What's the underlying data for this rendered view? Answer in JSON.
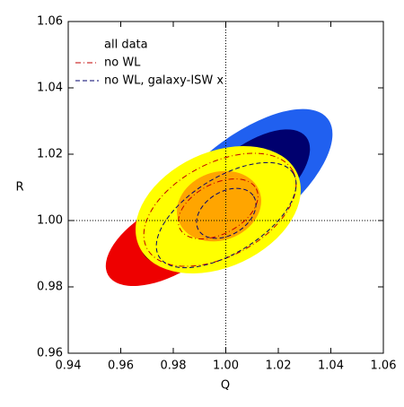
{
  "chart_data": {
    "type": "contour",
    "xlabel": "Q",
    "ylabel": "R",
    "xlim": [
      0.94,
      1.06
    ],
    "ylim": [
      0.96,
      1.06
    ],
    "xticks": [
      0.94,
      0.96,
      0.98,
      {
        "value": 1.0,
        "label": "1.00"
      },
      1.02,
      1.04,
      1.06
    ],
    "yticks": [
      0.96,
      0.98,
      {
        "value": 1.0,
        "label": "1.00"
      },
      1.02,
      1.04,
      1.06
    ],
    "series": [
      {
        "name": "all data",
        "color": "#ffa500",
        "style": "filled"
      },
      {
        "name": "no WL",
        "color": "#c00000",
        "style": "dash-dot"
      },
      {
        "name": "no WL, galaxy-ISW x",
        "color": "#00006e",
        "style": "dashed"
      }
    ]
  }
}
